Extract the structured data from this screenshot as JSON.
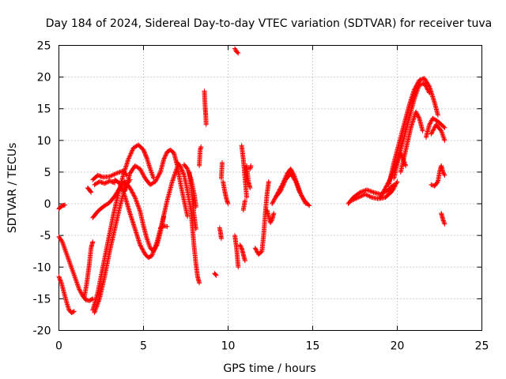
{
  "chart_data": {
    "type": "scatter",
    "title": "Day 184 of 2024, Sidereal Day-to-day VTEC variation (SDTVAR) for receiver tuva",
    "xlabel": "GPS time / hours",
    "ylabel": "SDTVAR / TECUs",
    "xlim": [
      0,
      25
    ],
    "ylim": [
      -20,
      25
    ],
    "xticks": [
      0,
      5,
      10,
      15,
      20,
      25
    ],
    "yticks": [
      -20,
      -15,
      -10,
      -5,
      0,
      5,
      10,
      15,
      20,
      25
    ],
    "grid": true,
    "marker": "+",
    "color": "#ff0000",
    "segments": [
      [
        [
          0.0,
          -0.8
        ],
        [
          0.1,
          -0.5
        ],
        [
          0.2,
          -0.3
        ],
        [
          0.35,
          -0.2
        ]
      ],
      [
        [
          0.0,
          -5.2
        ],
        [
          0.2,
          -6.0
        ],
        [
          0.4,
          -7.5
        ],
        [
          0.6,
          -9.0
        ],
        [
          0.8,
          -10.5
        ],
        [
          1.0,
          -12.0
        ],
        [
          1.2,
          -13.5
        ],
        [
          1.4,
          -14.5
        ],
        [
          1.6,
          -15.2
        ],
        [
          1.8,
          -15.3
        ],
        [
          2.0,
          -15.0
        ]
      ],
      [
        [
          0.0,
          -11.5
        ],
        [
          0.15,
          -12.5
        ],
        [
          0.3,
          -14.0
        ],
        [
          0.45,
          -15.5
        ],
        [
          0.6,
          -16.8
        ],
        [
          0.75,
          -17.2
        ],
        [
          0.9,
          -17.0
        ]
      ],
      [
        [
          1.5,
          -14.8
        ],
        [
          1.65,
          -12.5
        ],
        [
          1.8,
          -9.5
        ],
        [
          1.9,
          -7.0
        ],
        [
          2.0,
          -6.0
        ]
      ],
      [
        [
          1.7,
          2.5
        ],
        [
          1.8,
          2.2
        ],
        [
          1.9,
          1.8
        ]
      ],
      [
        [
          2.0,
          -16.8
        ],
        [
          2.3,
          -14.0
        ],
        [
          2.6,
          -10.0
        ],
        [
          2.9,
          -6.0
        ],
        [
          3.2,
          -2.0
        ],
        [
          3.5,
          1.5
        ],
        [
          3.8,
          4.5
        ],
        [
          4.1,
          7.0
        ],
        [
          4.4,
          8.8
        ],
        [
          4.7,
          9.3
        ],
        [
          5.0,
          8.5
        ],
        [
          5.2,
          7.2
        ],
        [
          5.4,
          5.5
        ],
        [
          5.6,
          4.0
        ]
      ],
      [
        [
          2.1,
          -17.2
        ],
        [
          2.4,
          -15.0
        ],
        [
          2.7,
          -11.5
        ],
        [
          3.0,
          -7.5
        ],
        [
          3.3,
          -4.0
        ],
        [
          3.6,
          -0.5
        ],
        [
          3.9,
          2.5
        ],
        [
          4.2,
          3.8
        ]
      ],
      [
        [
          2.0,
          3.8
        ],
        [
          2.3,
          4.5
        ],
        [
          2.6,
          4.2
        ],
        [
          3.0,
          4.3
        ],
        [
          3.4,
          4.8
        ],
        [
          3.8,
          5.2
        ],
        [
          4.0,
          4.5
        ]
      ],
      [
        [
          2.1,
          3.0
        ],
        [
          2.4,
          3.5
        ],
        [
          2.7,
          3.2
        ],
        [
          3.0,
          3.6
        ],
        [
          3.3,
          3.3
        ]
      ],
      [
        [
          2.0,
          -2.2
        ],
        [
          2.3,
          -1.2
        ],
        [
          2.6,
          -0.5
        ],
        [
          3.0,
          0.2
        ],
        [
          3.3,
          1.2
        ],
        [
          3.6,
          2.5
        ],
        [
          3.9,
          3.5
        ],
        [
          4.2,
          2.5
        ],
        [
          4.5,
          1.0
        ],
        [
          4.8,
          -1.2
        ],
        [
          5.0,
          -3.5
        ],
        [
          5.2,
          -5.5
        ],
        [
          5.4,
          -7.0
        ],
        [
          5.6,
          -7.5
        ],
        [
          5.8,
          -6.5
        ],
        [
          6.0,
          -4.5
        ],
        [
          6.2,
          -2.0
        ]
      ],
      [
        [
          3.3,
          3.8
        ],
        [
          3.6,
          3.2
        ],
        [
          3.9,
          1.2
        ],
        [
          4.2,
          -1.5
        ],
        [
          4.5,
          -4.0
        ],
        [
          4.8,
          -6.5
        ],
        [
          5.1,
          -8.0
        ],
        [
          5.3,
          -8.5
        ],
        [
          5.5,
          -8.2
        ],
        [
          5.8,
          -6.0
        ],
        [
          6.1,
          -3.0
        ],
        [
          6.4,
          0.5
        ],
        [
          6.7,
          3.5
        ],
        [
          7.0,
          5.8
        ]
      ],
      [
        [
          3.9,
          2.0
        ],
        [
          4.2,
          4.8
        ],
        [
          4.5,
          6.0
        ],
        [
          4.8,
          5.5
        ],
        [
          5.1,
          4.0
        ],
        [
          5.4,
          3.0
        ],
        [
          5.7,
          3.5
        ],
        [
          6.0,
          5.0
        ]
      ],
      [
        [
          6.0,
          5.0
        ],
        [
          6.2,
          7.0
        ],
        [
          6.4,
          8.2
        ],
        [
          6.6,
          8.5
        ],
        [
          6.8,
          8.0
        ],
        [
          7.0,
          6.0
        ],
        [
          7.2,
          3.0
        ],
        [
          7.4,
          0.5
        ],
        [
          7.6,
          -2.0
        ]
      ],
      [
        [
          6.0,
          -3.8
        ],
        [
          6.2,
          -3.5
        ],
        [
          6.4,
          -3.6
        ]
      ],
      [
        [
          7.0,
          6.5
        ],
        [
          7.2,
          5.8
        ],
        [
          7.4,
          4.5
        ],
        [
          7.6,
          2.0
        ],
        [
          7.8,
          -1.0
        ],
        [
          7.9,
          -4.0
        ],
        [
          8.0,
          -7.0
        ],
        [
          8.1,
          -9.5
        ],
        [
          8.2,
          -11.5
        ],
        [
          8.3,
          -12.5
        ]
      ],
      [
        [
          7.4,
          6.2
        ],
        [
          7.6,
          5.5
        ],
        [
          7.8,
          4.0
        ],
        [
          8.0,
          1.5
        ],
        [
          8.1,
          -0.5
        ]
      ],
      [
        [
          7.7,
          5.0
        ],
        [
          7.8,
          3.0
        ],
        [
          7.9,
          0.5
        ],
        [
          8.0,
          -2.0
        ],
        [
          8.1,
          -4.0
        ]
      ],
      [
        [
          8.3,
          6.0
        ],
        [
          8.35,
          8.5
        ],
        [
          8.4,
          9.0
        ]
      ],
      [
        [
          8.6,
          17.8
        ],
        [
          8.62,
          16.5
        ],
        [
          8.65,
          15.0
        ],
        [
          8.68,
          14.0
        ],
        [
          8.7,
          12.5
        ]
      ],
      [
        [
          9.2,
          -11.0
        ],
        [
          9.3,
          -11.3
        ]
      ],
      [
        [
          9.5,
          -3.8
        ],
        [
          9.55,
          -4.5
        ],
        [
          9.6,
          -5.5
        ]
      ],
      [
        [
          9.6,
          4.0
        ],
        [
          9.65,
          6.5
        ]
      ],
      [
        [
          9.7,
          3.5
        ],
        [
          9.8,
          2.0
        ],
        [
          9.9,
          0.8
        ],
        [
          10.0,
          0.0
        ]
      ],
      [
        [
          10.4,
          24.5
        ],
        [
          10.5,
          24.0
        ],
        [
          10.6,
          23.8
        ]
      ],
      [
        [
          10.4,
          -5.0
        ],
        [
          10.5,
          -7.0
        ],
        [
          10.6,
          -10.0
        ]
      ],
      [
        [
          10.7,
          -6.5
        ],
        [
          10.8,
          -7.0
        ],
        [
          10.9,
          -8.0
        ],
        [
          11.0,
          -9.0
        ]
      ],
      [
        [
          10.8,
          9.2
        ],
        [
          10.9,
          7.0
        ],
        [
          11.0,
          4.0
        ],
        [
          11.1,
          1.0
        ]
      ],
      [
        [
          10.9,
          -1.0
        ],
        [
          11.0,
          0.5
        ]
      ],
      [
        [
          11.1,
          6.0
        ],
        [
          11.2,
          3.5
        ],
        [
          11.3,
          2.5
        ]
      ],
      [
        [
          11.3,
          5.5
        ],
        [
          11.35,
          6.0
        ]
      ],
      [
        [
          11.6,
          -7.0
        ],
        [
          11.8,
          -8.0
        ],
        [
          12.0,
          -7.5
        ],
        [
          12.1,
          -5.0
        ],
        [
          12.2,
          -1.5
        ],
        [
          12.3,
          1.5
        ],
        [
          12.4,
          3.5
        ]
      ],
      [
        [
          12.3,
          -1.0
        ],
        [
          12.5,
          -3.0
        ],
        [
          12.6,
          -2.5
        ],
        [
          12.7,
          -1.5
        ]
      ],
      [
        [
          12.6,
          0.0
        ],
        [
          12.9,
          1.5
        ],
        [
          13.2,
          3.0
        ],
        [
          13.5,
          4.8
        ],
        [
          13.7,
          5.5
        ],
        [
          13.9,
          4.5
        ],
        [
          14.1,
          3.0
        ],
        [
          14.3,
          1.5
        ],
        [
          14.6,
          0.0
        ]
      ],
      [
        [
          12.8,
          1.0
        ],
        [
          13.1,
          2.0
        ],
        [
          13.4,
          3.8
        ],
        [
          13.7,
          4.8
        ],
        [
          14.0,
          3.5
        ],
        [
          14.2,
          2.0
        ],
        [
          14.5,
          0.5
        ],
        [
          14.8,
          -0.3
        ]
      ],
      [
        [
          17.1,
          0.0
        ],
        [
          17.4,
          1.0
        ],
        [
          17.8,
          1.8
        ],
        [
          18.2,
          2.2
        ],
        [
          18.6,
          1.8
        ],
        [
          19.0,
          1.5
        ],
        [
          19.4,
          2.0
        ],
        [
          19.8,
          3.0
        ]
      ],
      [
        [
          17.3,
          0.5
        ],
        [
          17.7,
          1.0
        ],
        [
          18.1,
          1.5
        ],
        [
          18.5,
          1.0
        ],
        [
          18.9,
          0.8
        ],
        [
          19.3,
          1.0
        ],
        [
          19.7,
          2.0
        ],
        [
          20.0,
          3.5
        ]
      ],
      [
        [
          19.0,
          1.0
        ],
        [
          19.3,
          2.5
        ],
        [
          19.6,
          4.0
        ],
        [
          19.9,
          6.0
        ],
        [
          20.2,
          8.0
        ],
        [
          20.5,
          6.0
        ]
      ],
      [
        [
          19.5,
          3.0
        ],
        [
          19.8,
          6.5
        ],
        [
          20.1,
          9.5
        ],
        [
          20.4,
          12.5
        ],
        [
          20.7,
          15.5
        ],
        [
          21.0,
          18.0
        ],
        [
          21.3,
          19.5
        ],
        [
          21.6,
          19.8
        ],
        [
          21.9,
          18.5
        ],
        [
          22.2,
          16.0
        ],
        [
          22.4,
          14.0
        ]
      ],
      [
        [
          19.8,
          4.0
        ],
        [
          20.1,
          7.5
        ],
        [
          20.4,
          10.5
        ],
        [
          20.7,
          13.5
        ],
        [
          21.0,
          16.5
        ],
        [
          21.3,
          18.8
        ],
        [
          21.6,
          19.0
        ],
        [
          21.9,
          17.5
        ]
      ],
      [
        [
          20.2,
          5.0
        ],
        [
          20.5,
          8.5
        ],
        [
          20.8,
          12.0
        ],
        [
          21.1,
          14.5
        ],
        [
          21.3,
          13.5
        ],
        [
          21.5,
          11.5
        ]
      ],
      [
        [
          21.7,
          10.5
        ],
        [
          21.9,
          12.5
        ],
        [
          22.1,
          13.5
        ],
        [
          22.4,
          13.0
        ],
        [
          22.6,
          12.5
        ],
        [
          22.8,
          12.0
        ]
      ],
      [
        [
          22.0,
          11.0
        ],
        [
          22.3,
          12.5
        ],
        [
          22.6,
          11.5
        ],
        [
          22.8,
          10.0
        ]
      ],
      [
        [
          22.0,
          3.0
        ],
        [
          22.2,
          2.8
        ],
        [
          22.4,
          3.5
        ],
        [
          22.5,
          5.0
        ],
        [
          22.6,
          6.0
        ],
        [
          22.7,
          5.0
        ],
        [
          22.8,
          4.5
        ]
      ],
      [
        [
          22.6,
          -1.5
        ],
        [
          22.7,
          -2.5
        ],
        [
          22.8,
          -3.2
        ]
      ]
    ]
  }
}
